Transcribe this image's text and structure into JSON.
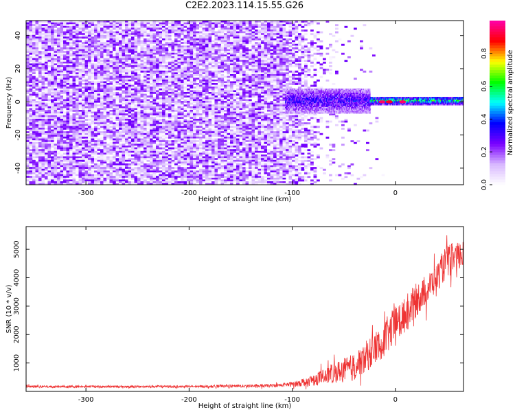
{
  "title": "C2E2.2023.114.15.55.G26",
  "chart_data": [
    {
      "type": "heatmap",
      "xlabel": "Height of straight line (km)",
      "ylabel": "Frequency (Hz)",
      "xlim": [
        -358,
        66
      ],
      "ylim": [
        -50,
        49
      ],
      "xticks": [
        -300,
        -200,
        -100,
        0
      ],
      "yticks": [
        -40,
        -20,
        0,
        20,
        40
      ],
      "grid": false,
      "description_of_field": {
        "noise_region": {
          "x_from": -358,
          "x_to": -110,
          "freq_band": [
            -50,
            49
          ],
          "dominant_amplitude": 0.15
        },
        "transition_region": {
          "x_from": -110,
          "x_to": -70,
          "fade": true
        },
        "signal_band": [
          {
            "x_from": -107,
            "x_to": -25,
            "freq_band": [
              -7,
              8
            ],
            "amplitude": 0.3
          },
          {
            "x_from": -25,
            "x_to": 66,
            "freq_band": [
              -2,
              3
            ],
            "amplitude": 0.5
          }
        ],
        "peaks": [
          {
            "x": -13,
            "freq": 0,
            "amplitude": 0.95
          },
          {
            "x": -6,
            "freq": 0,
            "amplitude": 0.9
          },
          {
            "x": 7,
            "freq": 0,
            "amplitude": 0.95
          }
        ]
      },
      "colorbar": {
        "label": "Normalized spectral amplitude",
        "range": [
          0.0,
          1.0
        ],
        "ticks": [
          0.0,
          0.2,
          0.4,
          0.6,
          0.8
        ],
        "colors": [
          "#ffffff",
          "#d8b8ff",
          "#7a00ff",
          "#0000ff",
          "#00ffff",
          "#00ff00",
          "#ffff00",
          "#ff0000",
          "#ff00aa"
        ]
      }
    },
    {
      "type": "line",
      "xlabel": "Height of straight line (km)",
      "ylabel": "SNR (10 * v/v)",
      "xlim": [
        -358,
        66
      ],
      "ylim": [
        0,
        5800
      ],
      "xticks": [
        -300,
        -200,
        -100,
        0
      ],
      "yticks": [
        1000,
        2000,
        3000,
        4000,
        5000
      ],
      "grid": false,
      "color": "#ee3333",
      "series": [
        {
          "envelope_x": [
            -358,
            -300,
            -200,
            -120,
            -100,
            -80,
            -60,
            -40,
            -20,
            0,
            20,
            40,
            50,
            66
          ],
          "envelope_mean": [
            170,
            170,
            170,
            200,
            250,
            400,
            650,
            850,
            1500,
            2300,
            3200,
            4000,
            4600,
            4800
          ],
          "envelope_spread": [
            40,
            40,
            40,
            60,
            90,
            200,
            350,
            500,
            600,
            700,
            600,
            500,
            600,
            500
          ]
        }
      ]
    }
  ]
}
